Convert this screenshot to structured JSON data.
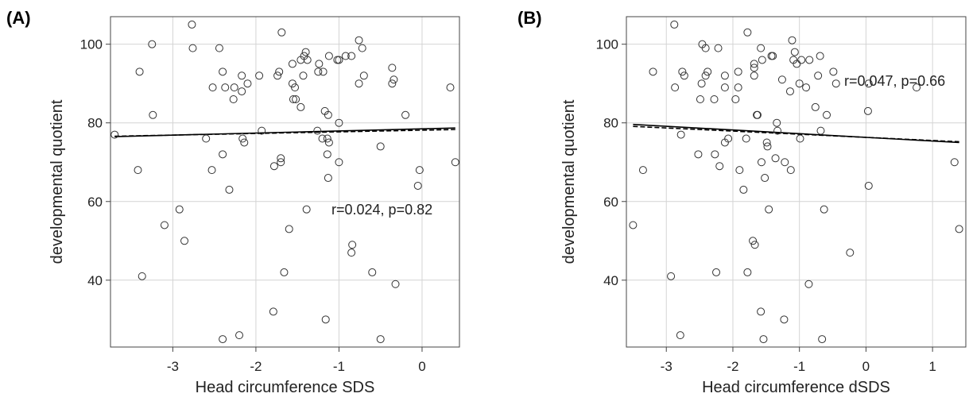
{
  "chart_data": [
    {
      "type": "scatter",
      "panel_label": "(A)",
      "xlabel": "Head circumference SDS",
      "ylabel": "developmental quotient",
      "xlim": [
        -3.75,
        0.45
      ],
      "ylim": [
        23,
        107
      ],
      "xticks": [
        -3,
        -2,
        -1,
        0
      ],
      "yticks": [
        40,
        60,
        80,
        100
      ],
      "grid": true,
      "annotation": "r=0.024, p=0.82",
      "fit_line": {
        "x": [
          -3.7,
          0.4
        ],
        "y": [
          76.5,
          78.7
        ]
      },
      "fit_line_dashed": {
        "x": [
          -3.7,
          0.4
        ],
        "y": [
          76.6,
          78.3
        ]
      },
      "points": [
        [
          -3.7,
          77
        ],
        [
          -3.42,
          68
        ],
        [
          -3.4,
          93
        ],
        [
          -3.37,
          41
        ],
        [
          -3.25,
          100
        ],
        [
          -3.24,
          82
        ],
        [
          -3.1,
          54
        ],
        [
          -2.92,
          58
        ],
        [
          -2.86,
          50
        ],
        [
          -2.77,
          105
        ],
        [
          -2.76,
          99
        ],
        [
          -2.6,
          76
        ],
        [
          -2.53,
          68
        ],
        [
          -2.52,
          89
        ],
        [
          -2.44,
          99
        ],
        [
          -2.4,
          93
        ],
        [
          -2.4,
          72
        ],
        [
          -2.37,
          89
        ],
        [
          -2.4,
          25
        ],
        [
          -2.32,
          63
        ],
        [
          -2.27,
          86
        ],
        [
          -2.26,
          89
        ],
        [
          -2.2,
          26
        ],
        [
          -2.17,
          88
        ],
        [
          -2.17,
          92
        ],
        [
          -2.16,
          76
        ],
        [
          -2.14,
          75
        ],
        [
          -2.1,
          90
        ],
        [
          -1.96,
          92
        ],
        [
          -1.93,
          78
        ],
        [
          -1.79,
          32
        ],
        [
          -1.78,
          69
        ],
        [
          -1.74,
          92
        ],
        [
          -1.72,
          93
        ],
        [
          -1.7,
          71
        ],
        [
          -1.7,
          70
        ],
        [
          -1.69,
          103
        ],
        [
          -1.66,
          42
        ],
        [
          -1.6,
          53
        ],
        [
          -1.56,
          95
        ],
        [
          -1.56,
          90
        ],
        [
          -1.55,
          86
        ],
        [
          -1.53,
          89
        ],
        [
          -1.52,
          86
        ],
        [
          -1.46,
          84
        ],
        [
          -1.46,
          96
        ],
        [
          -1.43,
          92
        ],
        [
          -1.42,
          97
        ],
        [
          -1.4,
          98
        ],
        [
          -1.39,
          58
        ],
        [
          -1.38,
          96
        ],
        [
          -1.26,
          78
        ],
        [
          -1.25,
          93
        ],
        [
          -1.24,
          95
        ],
        [
          -1.2,
          76
        ],
        [
          -1.19,
          93
        ],
        [
          -1.17,
          83
        ],
        [
          -1.16,
          30
        ],
        [
          -1.14,
          72
        ],
        [
          -1.14,
          76
        ],
        [
          -1.13,
          66
        ],
        [
          -1.13,
          82
        ],
        [
          -1.12,
          97
        ],
        [
          -1.12,
          75
        ],
        [
          -1.02,
          96
        ],
        [
          -1.0,
          80
        ],
        [
          -1.0,
          96
        ],
        [
          -1.0,
          70
        ],
        [
          -0.92,
          97
        ],
        [
          -0.85,
          97
        ],
        [
          -0.85,
          47
        ],
        [
          -0.84,
          49
        ],
        [
          -0.76,
          90
        ],
        [
          -0.76,
          101
        ],
        [
          -0.72,
          99
        ],
        [
          -0.7,
          92
        ],
        [
          -0.6,
          42
        ],
        [
          -0.5,
          25
        ],
        [
          -0.5,
          74
        ],
        [
          -0.36,
          94
        ],
        [
          -0.36,
          90
        ],
        [
          -0.34,
          91
        ],
        [
          -0.32,
          39
        ],
        [
          -0.2,
          82
        ],
        [
          -0.05,
          64
        ],
        [
          -0.03,
          68
        ],
        [
          0.34,
          89
        ],
        [
          0.4,
          70
        ]
      ]
    },
    {
      "type": "scatter",
      "panel_label": "(B)",
      "xlabel": "Head circumference dSDS",
      "ylabel": "developmental quotient",
      "xlim": [
        -3.6,
        1.5
      ],
      "ylim": [
        23,
        107
      ],
      "xticks": [
        -3,
        -2,
        -1,
        0,
        1
      ],
      "yticks": [
        40,
        60,
        80,
        100
      ],
      "grid": true,
      "annotation": "r=0.047, p=0.66",
      "fit_line": {
        "x": [
          -3.5,
          1.4
        ],
        "y": [
          79.6,
          75.0
        ]
      },
      "fit_line_dashed": {
        "x": [
          -3.5,
          1.4
        ],
        "y": [
          79.1,
          75.2
        ]
      },
      "points": [
        [
          -3.5,
          54
        ],
        [
          -3.35,
          68
        ],
        [
          -3.2,
          93
        ],
        [
          -2.93,
          41
        ],
        [
          -2.88,
          105
        ],
        [
          -2.87,
          89
        ],
        [
          -2.79,
          26
        ],
        [
          -2.78,
          77
        ],
        [
          -2.76,
          93
        ],
        [
          -2.73,
          92
        ],
        [
          -2.52,
          72
        ],
        [
          -2.49,
          86
        ],
        [
          -2.47,
          90
        ],
        [
          -2.46,
          100
        ],
        [
          -2.41,
          99
        ],
        [
          -2.41,
          92
        ],
        [
          -2.38,
          93
        ],
        [
          -2.28,
          86
        ],
        [
          -2.27,
          72
        ],
        [
          -2.25,
          42
        ],
        [
          -2.22,
          99
        ],
        [
          -2.2,
          69
        ],
        [
          -2.12,
          92
        ],
        [
          -2.12,
          75
        ],
        [
          -2.12,
          89
        ],
        [
          -2.07,
          76
        ],
        [
          -1.96,
          86
        ],
        [
          -1.92,
          93
        ],
        [
          -1.92,
          89
        ],
        [
          -1.9,
          68
        ],
        [
          -1.84,
          63
        ],
        [
          -1.8,
          76
        ],
        [
          -1.78,
          103
        ],
        [
          -1.78,
          42
        ],
        [
          -1.7,
          50
        ],
        [
          -1.68,
          94
        ],
        [
          -1.68,
          95
        ],
        [
          -1.68,
          92
        ],
        [
          -1.67,
          49
        ],
        [
          -1.64,
          82
        ],
        [
          -1.63,
          82
        ],
        [
          -1.58,
          32
        ],
        [
          -1.58,
          99
        ],
        [
          -1.57,
          70
        ],
        [
          -1.56,
          96
        ],
        [
          -1.54,
          25
        ],
        [
          -1.52,
          66
        ],
        [
          -1.49,
          75
        ],
        [
          -1.48,
          74
        ],
        [
          -1.46,
          58
        ],
        [
          -1.42,
          97
        ],
        [
          -1.4,
          97
        ],
        [
          -1.36,
          71
        ],
        [
          -1.34,
          80
        ],
        [
          -1.33,
          78
        ],
        [
          -1.26,
          91
        ],
        [
          -1.23,
          30
        ],
        [
          -1.22,
          70
        ],
        [
          -1.14,
          88
        ],
        [
          -1.13,
          68
        ],
        [
          -1.11,
          101
        ],
        [
          -1.09,
          96
        ],
        [
          -1.07,
          98
        ],
        [
          -1.04,
          95
        ],
        [
          -1.0,
          90
        ],
        [
          -0.99,
          76
        ],
        [
          -0.97,
          96
        ],
        [
          -0.9,
          89
        ],
        [
          -0.86,
          39
        ],
        [
          -0.85,
          96
        ],
        [
          -0.76,
          84
        ],
        [
          -0.72,
          92
        ],
        [
          -0.69,
          97
        ],
        [
          -0.68,
          78
        ],
        [
          -0.66,
          25
        ],
        [
          -0.63,
          58
        ],
        [
          -0.59,
          82
        ],
        [
          -0.49,
          93
        ],
        [
          -0.45,
          90
        ],
        [
          -0.24,
          47
        ],
        [
          0.04,
          64
        ],
        [
          0.04,
          90
        ],
        [
          0.03,
          83
        ],
        [
          0.76,
          89
        ],
        [
          1.33,
          70
        ],
        [
          1.4,
          53
        ]
      ]
    }
  ]
}
